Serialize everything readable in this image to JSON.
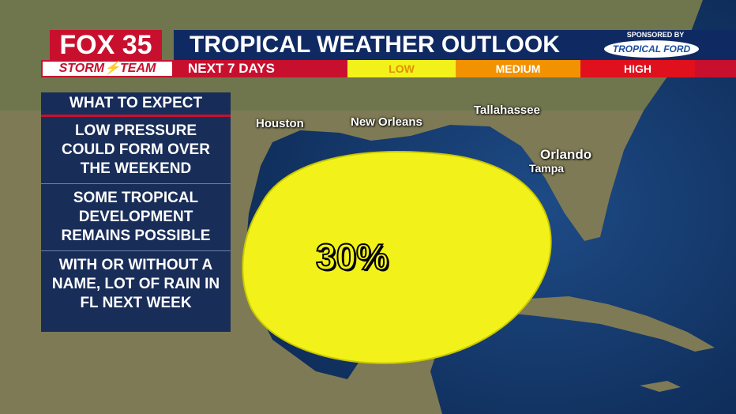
{
  "header": {
    "logo": "FOX 35",
    "team": "STORM⚡TEAM",
    "title": "TROPICAL WEATHER OUTLOOK",
    "period": "NEXT 7 DAYS",
    "levels": [
      "LOW",
      "MEDIUM",
      "HIGH"
    ],
    "sponsor_label": "SPONSORED BY",
    "sponsor": "TROPICAL FORD"
  },
  "panel": {
    "title": "WHAT TO EXPECT",
    "items": [
      "LOW PRESSURE COULD FORM OVER THE WEEKEND",
      "SOME TROPICAL DEVELOPMENT REMAINS POSSIBLE",
      "WITH OR WITHOUT A NAME, LOT OF RAIN IN FL NEXT WEEK"
    ]
  },
  "map": {
    "cities": [
      "Houston",
      "New Orleans",
      "Tallahassee",
      "Orlando",
      "Tampa"
    ],
    "outlook_area": {
      "chance": "30%"
    }
  }
}
